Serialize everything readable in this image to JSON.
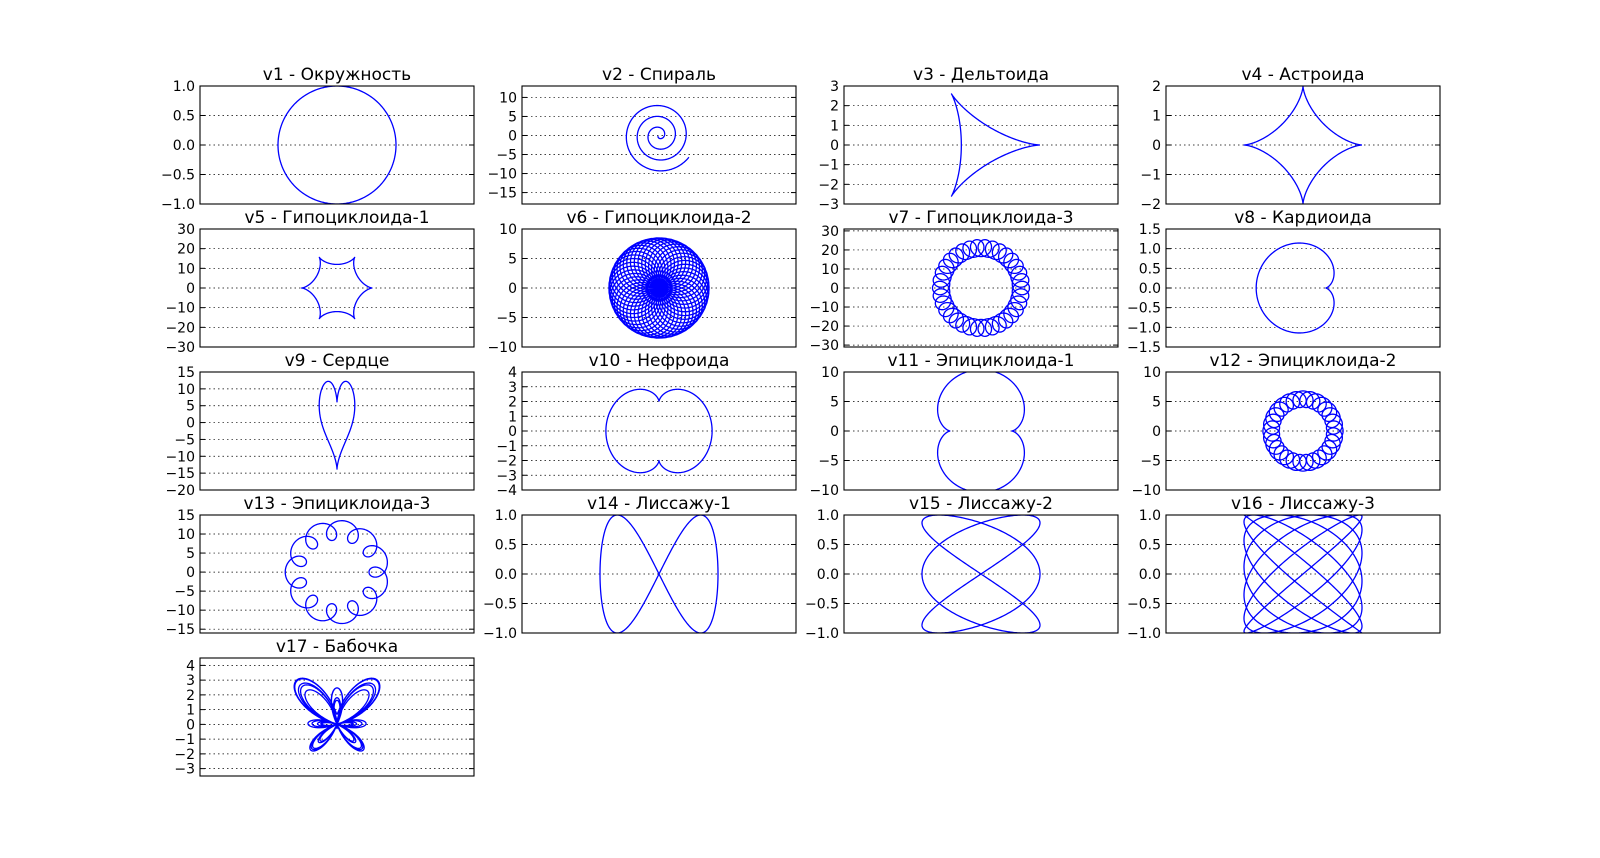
{
  "chart_data": [
    {
      "type": "line",
      "title": "v1 - Окружность",
      "curve": "circle",
      "ylim": [
        -1.0,
        1.0
      ],
      "yticks": [
        1.0,
        0.5,
        0.0,
        -0.5,
        -1.0
      ],
      "tick_labels": [
        "1.0",
        "0.5",
        "0.0",
        "−0.5",
        "−1.0"
      ],
      "grid": true
    },
    {
      "type": "line",
      "title": "v2 - Спираль",
      "curve": "spiral",
      "ylim": [
        -18,
        13
      ],
      "yticks": [
        10,
        5,
        0,
        -5,
        -10,
        -15
      ],
      "tick_labels": [
        "10",
        "5",
        "0",
        "−5",
        "−10",
        "−15"
      ],
      "grid": true
    },
    {
      "type": "line",
      "title": "v3 - Дельтоида",
      "curve": "deltoid",
      "ylim": [
        -3,
        3
      ],
      "yticks": [
        3,
        2,
        1,
        0,
        -1,
        -2,
        -3
      ],
      "tick_labels": [
        "3",
        "2",
        "1",
        "0",
        "−1",
        "−2",
        "−3"
      ],
      "grid": true
    },
    {
      "type": "line",
      "title": "v4 - Астроида",
      "curve": "astroid",
      "ylim": [
        -2,
        2
      ],
      "yticks": [
        2,
        1,
        0,
        -1,
        -2
      ],
      "tick_labels": [
        "2",
        "1",
        "0",
        "−1",
        "−2"
      ],
      "grid": true
    },
    {
      "type": "line",
      "title": "v5 - Гипоциклоида-1",
      "curve": "hypocycloid-1",
      "ylim": [
        -30,
        30
      ],
      "yticks": [
        30,
        20,
        10,
        0,
        -10,
        -20,
        -30
      ],
      "tick_labels": [
        "30",
        "20",
        "10",
        "0",
        "−10",
        "−20",
        "−30"
      ],
      "grid": true
    },
    {
      "type": "line",
      "title": "v6 - Гипоциклоида-2",
      "curve": "hypocycloid-2",
      "ylim": [
        -10,
        10
      ],
      "yticks": [
        10,
        5,
        0,
        -5,
        -10
      ],
      "tick_labels": [
        "10",
        "5",
        "0",
        "−5",
        "−10"
      ],
      "grid": true
    },
    {
      "type": "line",
      "title": "v7 - Гипоциклоида-3",
      "curve": "hypocycloid-3",
      "ylim": [
        -31,
        31
      ],
      "yticks": [
        30,
        20,
        10,
        0,
        -10,
        -20,
        -30
      ],
      "tick_labels": [
        "30",
        "20",
        "10",
        "0",
        "−10",
        "−20",
        "−30"
      ],
      "grid": true
    },
    {
      "type": "line",
      "title": "v8 - Кардиоида",
      "curve": "cardioid",
      "ylim": [
        -1.5,
        1.5
      ],
      "yticks": [
        1.5,
        1.0,
        0.5,
        0.0,
        -0.5,
        -1.0,
        -1.5
      ],
      "tick_labels": [
        "1.5",
        "1.0",
        "0.5",
        "0.0",
        "−0.5",
        "−1.0",
        "−1.5"
      ],
      "grid": true
    },
    {
      "type": "line",
      "title": "v9 - Сердце",
      "curve": "heart",
      "ylim": [
        -20,
        15
      ],
      "yticks": [
        15,
        10,
        5,
        0,
        -5,
        -10,
        -15,
        -20
      ],
      "tick_labels": [
        "15",
        "10",
        "5",
        "0",
        "−5",
        "−10",
        "−15",
        "−20"
      ],
      "grid": true
    },
    {
      "type": "line",
      "title": "v10 - Нефроида",
      "curve": "nephroid",
      "ylim": [
        -4,
        4
      ],
      "yticks": [
        4,
        3,
        2,
        1,
        0,
        -1,
        -2,
        -3,
        -4
      ],
      "tick_labels": [
        "4",
        "3",
        "2",
        "1",
        "0",
        "−1",
        "−2",
        "−3",
        "−4"
      ],
      "grid": true
    },
    {
      "type": "line",
      "title": "v11 - Эпициклоида-1",
      "curve": "epicycloid-1",
      "ylim": [
        -10,
        10
      ],
      "yticks": [
        10,
        5,
        0,
        -5,
        -10
      ],
      "tick_labels": [
        "10",
        "5",
        "0",
        "−5",
        "−10"
      ],
      "grid": true
    },
    {
      "type": "line",
      "title": "v12 - Эпициклоида-2",
      "curve": "epicycloid-2",
      "ylim": [
        -10,
        10
      ],
      "yticks": [
        10,
        5,
        0,
        -5,
        -10
      ],
      "tick_labels": [
        "10",
        "5",
        "0",
        "−5",
        "−10"
      ],
      "grid": true
    },
    {
      "type": "line",
      "title": "v13 - Эпициклоида-3",
      "curve": "epicycloid-3",
      "ylim": [
        -16,
        15
      ],
      "yticks": [
        15,
        10,
        5,
        0,
        -5,
        -10,
        -15
      ],
      "tick_labels": [
        "15",
        "10",
        "5",
        "0",
        "−5",
        "−10",
        "−15"
      ],
      "grid": true
    },
    {
      "type": "line",
      "title": "v14 - Лиссажу-1",
      "curve": "lissajous-1",
      "ylim": [
        -1.0,
        1.0
      ],
      "yticks": [
        1.0,
        0.5,
        0.0,
        -0.5,
        -1.0
      ],
      "tick_labels": [
        "1.0",
        "0.5",
        "0.0",
        "−0.5",
        "−1.0"
      ],
      "grid": true
    },
    {
      "type": "line",
      "title": "v15 - Лиссажу-2",
      "curve": "lissajous-2",
      "ylim": [
        -1.0,
        1.0
      ],
      "yticks": [
        1.0,
        0.5,
        0.0,
        -0.5,
        -1.0
      ],
      "tick_labels": [
        "1.0",
        "0.5",
        "0.0",
        "−0.5",
        "−1.0"
      ],
      "grid": true
    },
    {
      "type": "line",
      "title": "v16 - Лиссажу-3",
      "curve": "lissajous-3",
      "ylim": [
        -1.0,
        1.0
      ],
      "yticks": [
        1.0,
        0.5,
        0.0,
        -0.5,
        -1.0
      ],
      "tick_labels": [
        "1.0",
        "0.5",
        "0.0",
        "−0.5",
        "−1.0"
      ],
      "grid": true
    },
    {
      "type": "line",
      "title": "v17 - Бабочка",
      "curve": "butterfly",
      "ylim": [
        -3.5,
        4.5
      ],
      "yticks": [
        4,
        3,
        2,
        1,
        0,
        -1,
        -2,
        -3
      ],
      "tick_labels": [
        "4",
        "3",
        "2",
        "1",
        "0",
        "−1",
        "−2",
        "−3"
      ],
      "grid": true
    }
  ],
  "colors": {
    "curve": "#0000ff",
    "background": "#ffffff",
    "axes": "#000000"
  }
}
